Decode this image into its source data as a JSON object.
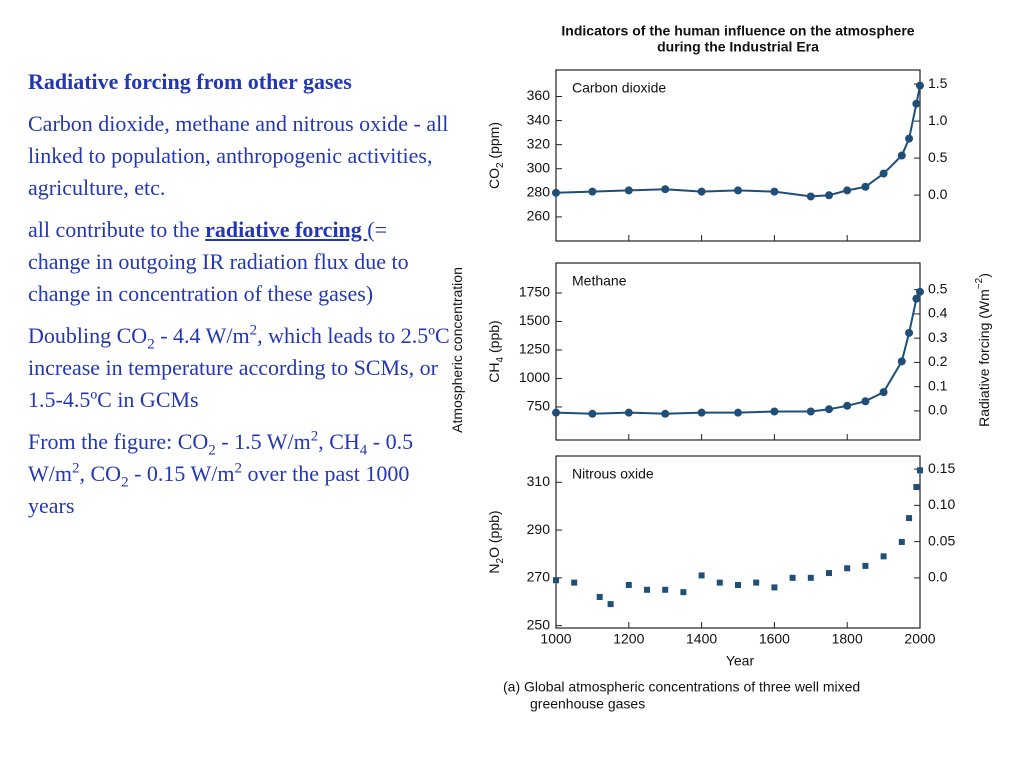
{
  "slide": {
    "heading": "Radiative forcing from other gases",
    "paragraphs": [
      [
        "Carbon dioxide, methane and nitrous oxide - all linked to population, anthropogenic activities, agriculture, etc."
      ],
      [
        "all contribute to the ",
        {
          "link": "radiative forcing "
        },
        "(= change in outgoing IR radiation flux due to change in concentration of these gases)"
      ],
      [
        "Doubling CO",
        {
          "sub": "2"
        },
        " - 4.4 W/m",
        {
          "sup": "2"
        },
        ", which leads to 2.5ºC increase in temperature according to SCMs, or 1.5-4.5ºC in GCMs"
      ],
      [
        "From the figure: CO",
        {
          "sub": "2"
        },
        " - 1.5 W/m",
        {
          "sup": "2"
        },
        ", CH",
        {
          "sub": "4"
        },
        " - 0.5 W/m",
        {
          "sup": "2"
        },
        ", CO",
        {
          "sub": "2"
        },
        " - 0.15 W/m",
        {
          "sup": "2"
        },
        " over the past 1000 years"
      ]
    ]
  },
  "figure": {
    "title": [
      "Indicators of the human influence on the atmosphere",
      "during the Industrial Era"
    ],
    "caption": [
      "(a) Global atmospheric concentrations of three well mixed",
      "greenhouse gases"
    ],
    "left_label": [
      "Atmospheric concentration"
    ],
    "right_label": [
      "Radiative forcing (Wm",
      {
        "sup": "−2"
      },
      ")"
    ],
    "x_label": "Year",
    "xlim": [
      1000,
      2000
    ],
    "xticks": [
      1000,
      1200,
      1400,
      1600,
      1800,
      2000
    ],
    "color": "#1f4e79",
    "panels": [
      {
        "type": "line",
        "name": "Carbon dioxide",
        "y_label": [
          "CO",
          {
            "sub": "2"
          },
          " (ppm)"
        ],
        "ylim": [
          240,
          382
        ],
        "yticks": [
          260,
          280,
          300,
          320,
          340,
          360
        ],
        "y2lim": [
          -0.62,
          1.69
        ],
        "y2ticks": [
          {
            "value": 0,
            "label": "0.0"
          },
          0.5,
          {
            "value": 1,
            "label": "1.0"
          },
          1.5
        ],
        "x": [
          1000,
          1100,
          1200,
          1300,
          1400,
          1500,
          1600,
          1700,
          1750,
          1800,
          1850,
          1900,
          1950,
          1970,
          1990,
          2000
        ],
        "values": [
          280,
          281,
          282,
          283,
          281,
          282,
          281,
          277,
          278,
          282,
          285,
          296,
          311,
          325,
          354,
          369
        ]
      },
      {
        "type": "line",
        "name": "Methane",
        "y_label": [
          "CH",
          {
            "sub": "4"
          },
          " (ppb)"
        ],
        "ylim": [
          460,
          2013
        ],
        "yticks": [
          750,
          1000,
          1250,
          1500,
          1750
        ],
        "y2lim": [
          -0.12,
          0.61
        ],
        "y2ticks": [
          {
            "value": 0,
            "label": "0.0"
          },
          0.1,
          0.2,
          0.3,
          0.4,
          0.5
        ],
        "x": [
          1000,
          1100,
          1200,
          1300,
          1400,
          1500,
          1600,
          1700,
          1750,
          1800,
          1850,
          1900,
          1950,
          1970,
          1990,
          2000
        ],
        "values": [
          700,
          690,
          700,
          690,
          700,
          700,
          710,
          710,
          730,
          760,
          800,
          880,
          1150,
          1400,
          1700,
          1760
        ]
      },
      {
        "type": "scatter",
        "name": "Nitrous oxide",
        "y_label": [
          "N",
          {
            "sub": "2"
          },
          "O (ppb)"
        ],
        "ylim": [
          249,
          321
        ],
        "yticks": [
          250,
          270,
          290,
          310
        ],
        "y2lim": [
          -0.069,
          0.168
        ],
        "y2ticks": [
          {
            "value": 0,
            "label": "0.0"
          },
          0.05,
          {
            "value": 0.1,
            "label": "0.10"
          },
          0.15
        ],
        "x": [
          1000,
          1050,
          1120,
          1150,
          1200,
          1250,
          1300,
          1350,
          1400,
          1450,
          1500,
          1550,
          1600,
          1650,
          1700,
          1750,
          1800,
          1850,
          1900,
          1950,
          1970,
          1990,
          2000
        ],
        "values": [
          269,
          268,
          262,
          259,
          267,
          265,
          265,
          264,
          271,
          268,
          267,
          268,
          266,
          270,
          270,
          272,
          274,
          275,
          279,
          285,
          295,
          308,
          315
        ]
      }
    ]
  }
}
